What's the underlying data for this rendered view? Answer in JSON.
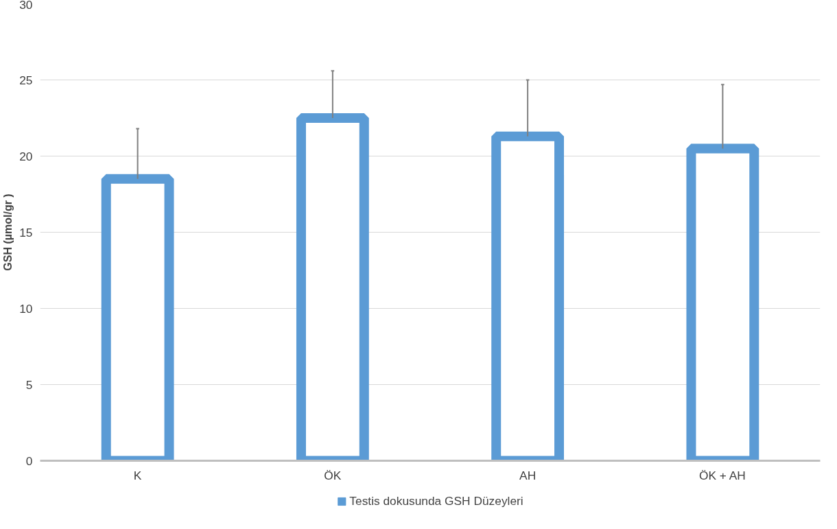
{
  "chart_data": {
    "type": "bar",
    "ylabel": "GSH (µmol/gr )",
    "categories": [
      "K",
      "ÖK",
      "AH",
      "ÖK + AH"
    ],
    "series": [
      {
        "name": "Testis dokusunda GSH Düzeyleri",
        "color": "#5b9bd5",
        "values": [
          18.5,
          22.5,
          21.3,
          20.5
        ],
        "errors": [
          [
            18.5,
            21.8
          ],
          [
            22.5,
            25.6
          ],
          [
            21.3,
            25.0
          ],
          [
            20.5,
            24.7
          ]
        ]
      }
    ],
    "ylim": [
      0,
      30
    ],
    "yticks": [
      0,
      5,
      10,
      15,
      20,
      25,
      30
    ],
    "grid": "y",
    "legend": "bottom"
  }
}
